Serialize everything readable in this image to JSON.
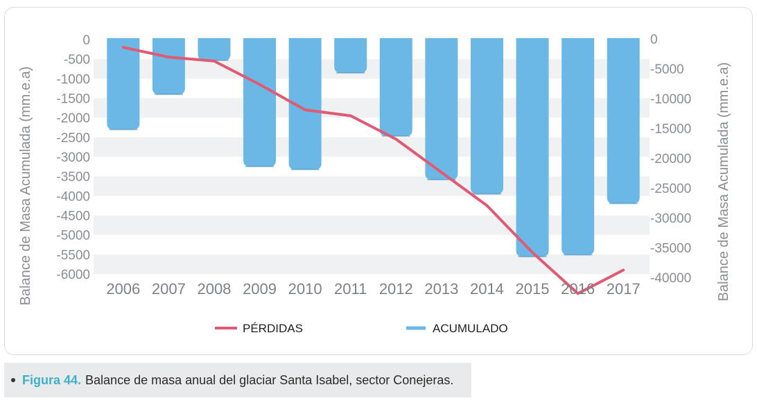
{
  "chart_data": {
    "type": "bar+line",
    "categories": [
      "2006",
      "2007",
      "2008",
      "2009",
      "2010",
      "2011",
      "2012",
      "2013",
      "2014",
      "2015",
      "2016",
      "2017"
    ],
    "series": [
      {
        "name": "PÉRDIDAS",
        "chart": "line",
        "axis": "left",
        "values": [
          -200,
          -450,
          -550,
          -1150,
          -1800,
          -1950,
          -2550,
          -3400,
          -4250,
          -5450,
          -6500,
          -5900
        ]
      },
      {
        "name": "ACUMULADO",
        "chart": "bar",
        "axis": "right",
        "values": [
          -15200,
          -9300,
          -3600,
          -21400,
          -21900,
          -5700,
          -16300,
          -23600,
          -26000,
          -36500,
          -36200,
          -27600
        ]
      }
    ],
    "y_left": {
      "label": "Balance de Masa Acumulada (mm.e.a)",
      "range": [
        -6000,
        0
      ],
      "ticks": [
        0,
        -500,
        -1000,
        -1500,
        -2000,
        -2500,
        -3000,
        -3500,
        -4000,
        -4500,
        -5000,
        -5500,
        -6000
      ]
    },
    "y_right": {
      "label": "Balance de Masa Acumulada (mm.e.a)",
      "range": [
        -40000,
        0
      ],
      "ticks": [
        0,
        -5000,
        -10000,
        -15000,
        -20000,
        -25000,
        -30000,
        -35000,
        -40000
      ]
    },
    "legend": {
      "position": "bottom",
      "items": [
        "PÉRDIDAS",
        "ACUMULADO"
      ]
    },
    "colors": {
      "line": "#e05a73",
      "bar": "#6bb8e6",
      "band": "#f0f1f2"
    }
  },
  "caption": {
    "label": "Figura 44.",
    "text": "Balance de masa anual del glaciar Santa Isabel, sector Conejeras."
  }
}
